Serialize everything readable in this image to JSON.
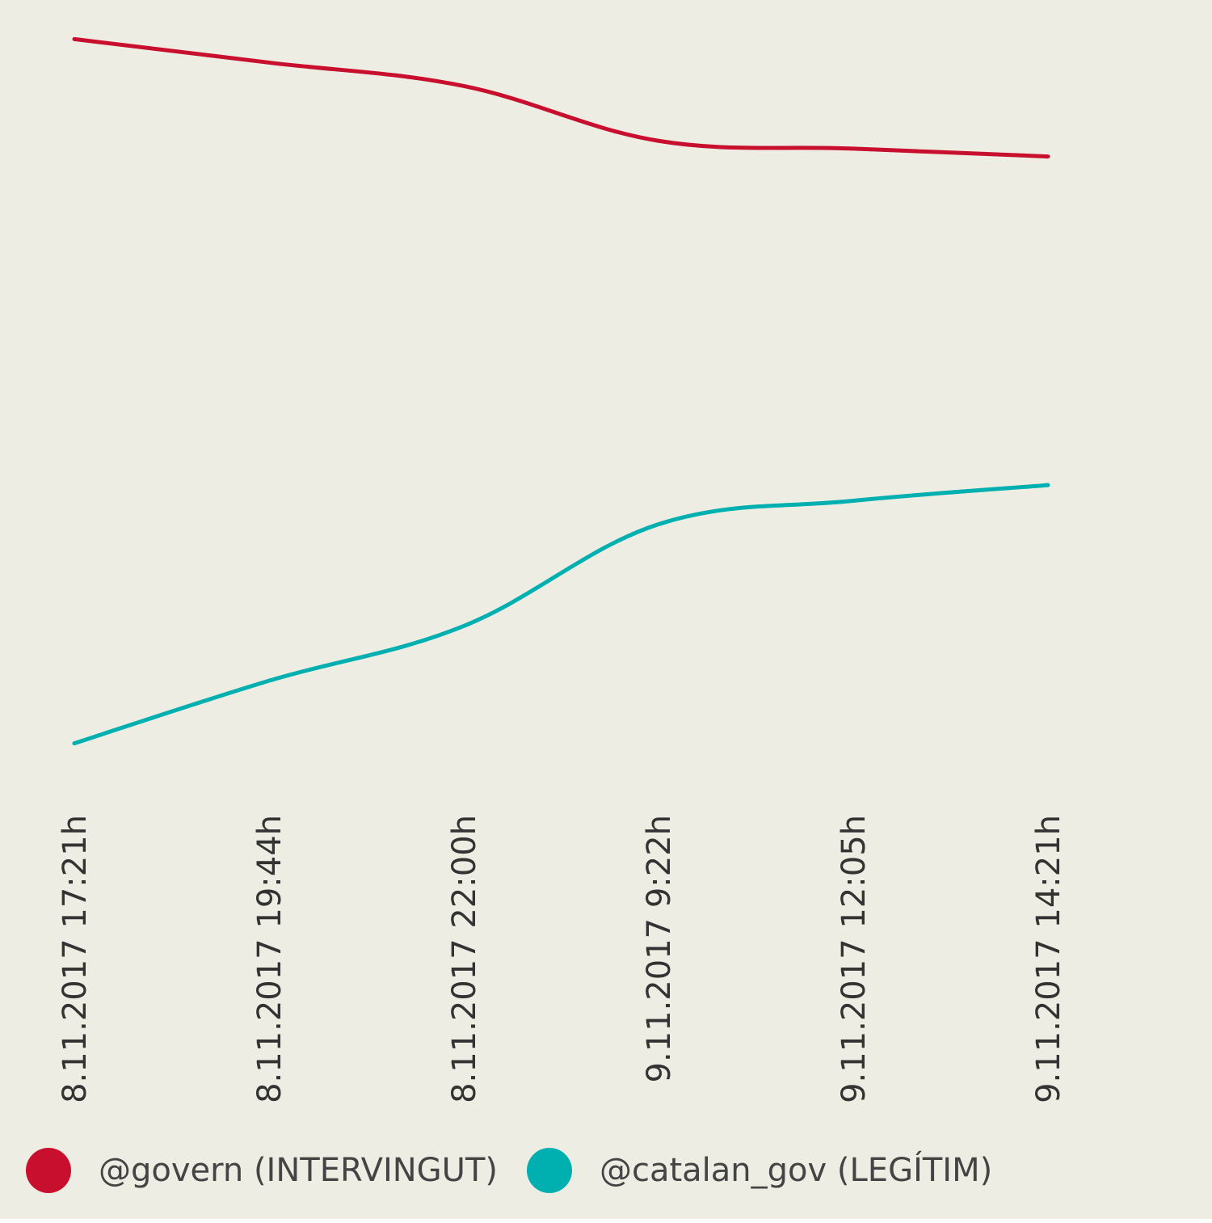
{
  "chart_data": {
    "type": "line",
    "title": "",
    "xlabel": "",
    "ylabel": "",
    "categories": [
      "8.11.2017 17:21h",
      "8.11.2017 19:44h",
      "8.11.2017 22:00h",
      "9.11.2017 9:22h",
      "9.11.2017 12:05h",
      "9.11.2017 14:21h"
    ],
    "ylim": [
      0,
      100
    ],
    "grid": false,
    "legend_position": "bottom",
    "series": [
      {
        "name": "@govern (INTERVINGUT)",
        "color": "#c8102e",
        "values": [
          95,
          92,
          89,
          82,
          81,
          80
        ]
      },
      {
        "name": "@catalan_gov (LEGÍTIM)",
        "color": "#00b0b0",
        "values": [
          5,
          13,
          20,
          33,
          36,
          38
        ]
      }
    ]
  }
}
